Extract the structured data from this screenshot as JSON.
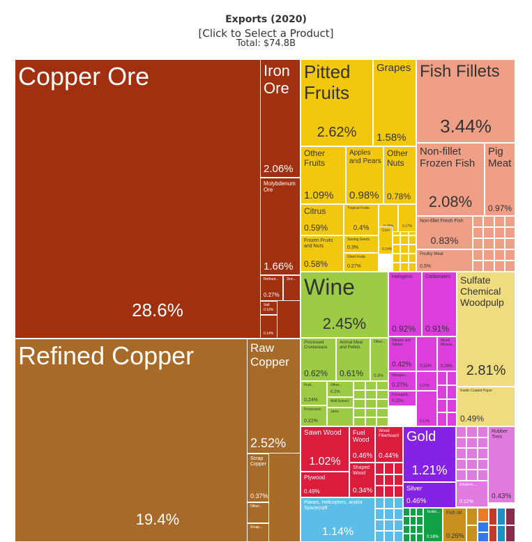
{
  "header": {
    "title": "Exports (2020)",
    "subtitle": "[Click to Select a Product]",
    "total": "Total: $74.8B"
  },
  "colors": {
    "minerals": "#a03010",
    "metals": "#a86a28",
    "vegetables": "#f2c80f",
    "animal": "#ef9f86",
    "foodstuffs": "#9ccc45",
    "chemicals": "#dc3ede",
    "paper": "#eedc7f",
    "wood": "#dc1c3c",
    "precious": "#8622e6",
    "transport": "#5bbde8",
    "plastics": "#e27be0",
    "machines": "#3579e6",
    "textiles": "#10a046",
    "misc": "#c8901c",
    "instruments": "#8a2c4c"
  },
  "chart_data": {
    "type": "treemap",
    "title": "Exports (2020)",
    "total": "Total: $74.8B",
    "items": [
      {
        "name": "Copper Ore",
        "share": 28.6,
        "group": "minerals"
      },
      {
        "name": "Iron Ore",
        "share": 2.06,
        "group": "minerals"
      },
      {
        "name": "Molybdenum Ore",
        "share": 1.66,
        "group": "minerals"
      },
      {
        "name": "Refined...",
        "share": 0.27,
        "group": "minerals"
      },
      {
        "name": "Zinc...",
        "share": null,
        "group": "minerals"
      },
      {
        "name": "Salt",
        "share": 0.16,
        "group": "minerals"
      },
      {
        "name": "",
        "share": 0.14,
        "group": "minerals"
      },
      {
        "name": "Refined Copper",
        "share": 19.4,
        "group": "metals"
      },
      {
        "name": "Raw Copper",
        "share": 2.52,
        "group": "metals"
      },
      {
        "name": "Scrap Copper",
        "share": 0.37,
        "group": "metals"
      },
      {
        "name": "Other...",
        "share": null,
        "group": "metals"
      },
      {
        "name": "Scrap...",
        "share": null,
        "group": "metals"
      },
      {
        "name": "Pitted Fruits",
        "share": 2.62,
        "group": "vegetables"
      },
      {
        "name": "Grapes",
        "share": 1.58,
        "group": "vegetables"
      },
      {
        "name": "Other Fruits",
        "share": 1.09,
        "group": "vegetables"
      },
      {
        "name": "Apples and Pears",
        "share": 0.98,
        "group": "vegetables"
      },
      {
        "name": "Other Nuts",
        "share": 0.78,
        "group": "vegetables"
      },
      {
        "name": "Citrus",
        "share": 0.59,
        "group": "vegetables"
      },
      {
        "name": "Tropical Fruits",
        "share": 0.4,
        "group": "vegetables"
      },
      {
        "name": "",
        "share": 0.18,
        "group": "vegetables"
      },
      {
        "name": "",
        "share": 0.17,
        "group": "vegetables"
      },
      {
        "name": "Sowing Seeds",
        "share": 0.3,
        "group": "vegetables"
      },
      {
        "name": "Corn",
        "share": 0.14,
        "group": "vegetables"
      },
      {
        "name": "Frozen Fruits and Nuts",
        "share": 0.58,
        "group": "vegetables"
      },
      {
        "name": "Dried Fruits",
        "share": 0.27,
        "group": "vegetables"
      },
      {
        "name": "Fish Fillets",
        "share": 3.44,
        "group": "animal"
      },
      {
        "name": "Non-fillet Frozen Fish",
        "share": 2.08,
        "group": "animal"
      },
      {
        "name": "Pig Meat",
        "share": 0.97,
        "group": "animal"
      },
      {
        "name": "Non-fillet Fresh Fish",
        "share": 0.83,
        "group": "animal"
      },
      {
        "name": "Poultry Meat",
        "share": 0.5,
        "group": "animal"
      },
      {
        "name": "Wine",
        "share": 2.45,
        "group": "foodstuffs"
      },
      {
        "name": "Processed Crustaceans",
        "share": 0.62,
        "group": "foodstuffs"
      },
      {
        "name": "Animal Meal and Pellets",
        "share": 0.61,
        "group": "foodstuffs"
      },
      {
        "name": "Other...",
        "share": 0.3,
        "group": "foodstuffs"
      },
      {
        "name": "Fruit...",
        "share": 0.24,
        "group": "foodstuffs"
      },
      {
        "name": "Other...",
        "share": 0.2,
        "group": "foodstuffs"
      },
      {
        "name": "Malt Extract",
        "share": null,
        "group": "foodstuffs"
      },
      {
        "name": "Processed...",
        "share": 0.22,
        "group": "foodstuffs"
      },
      {
        "name": "Jams",
        "share": null,
        "group": "foodstuffs"
      },
      {
        "name": "Halogens",
        "share": 0.92,
        "group": "chemicals"
      },
      {
        "name": "Carbonates",
        "share": 0.91,
        "group": "chemicals"
      },
      {
        "name": "Nitrates and Nitrites",
        "share": 0.42,
        "group": "chemicals"
      },
      {
        "name": "",
        "share": 0.32,
        "group": "chemicals"
      },
      {
        "name": "Mixed Mineral...",
        "share": 0.29,
        "group": "chemicals"
      },
      {
        "name": "Nitrogen...",
        "share": 0.27,
        "group": "chemicals"
      },
      {
        "name": "",
        "share": 0.25,
        "group": "chemicals"
      },
      {
        "name": "Packaged...",
        "share": 0.25,
        "group": "chemicals"
      },
      {
        "name": "",
        "share": 0.17,
        "group": "chemicals"
      },
      {
        "name": "Sulfate Chemical Woodpulp",
        "share": 2.81,
        "group": "paper"
      },
      {
        "name": "Kaolin Coated Paper",
        "share": 0.49,
        "group": "paper"
      },
      {
        "name": "Sawn Wood",
        "share": 1.02,
        "group": "wood"
      },
      {
        "name": "Fuel Wood",
        "share": 0.46,
        "group": "wood"
      },
      {
        "name": "Wood Fiberboard",
        "share": 0.44,
        "group": "wood"
      },
      {
        "name": "Plywood",
        "share": 0.49,
        "group": "wood"
      },
      {
        "name": "Shaped Wood",
        "share": 0.34,
        "group": "wood"
      },
      {
        "name": "Gold",
        "share": 1.21,
        "group": "precious"
      },
      {
        "name": "Silver",
        "share": 0.46,
        "group": "precious"
      },
      {
        "name": "Planes, Helicopters, and/or Spacecraft",
        "share": 1.14,
        "group": "transport"
      },
      {
        "name": "Rubber Tires",
        "share": 0.43,
        "group": "plastics"
      },
      {
        "name": "Ethylene...",
        "share": 0.12,
        "group": "plastics"
      },
      {
        "name": "Textile...",
        "share": 0.18,
        "group": "textiles"
      },
      {
        "name": "Fish oil",
        "share": 0.26,
        "group": "misc"
      }
    ]
  }
}
